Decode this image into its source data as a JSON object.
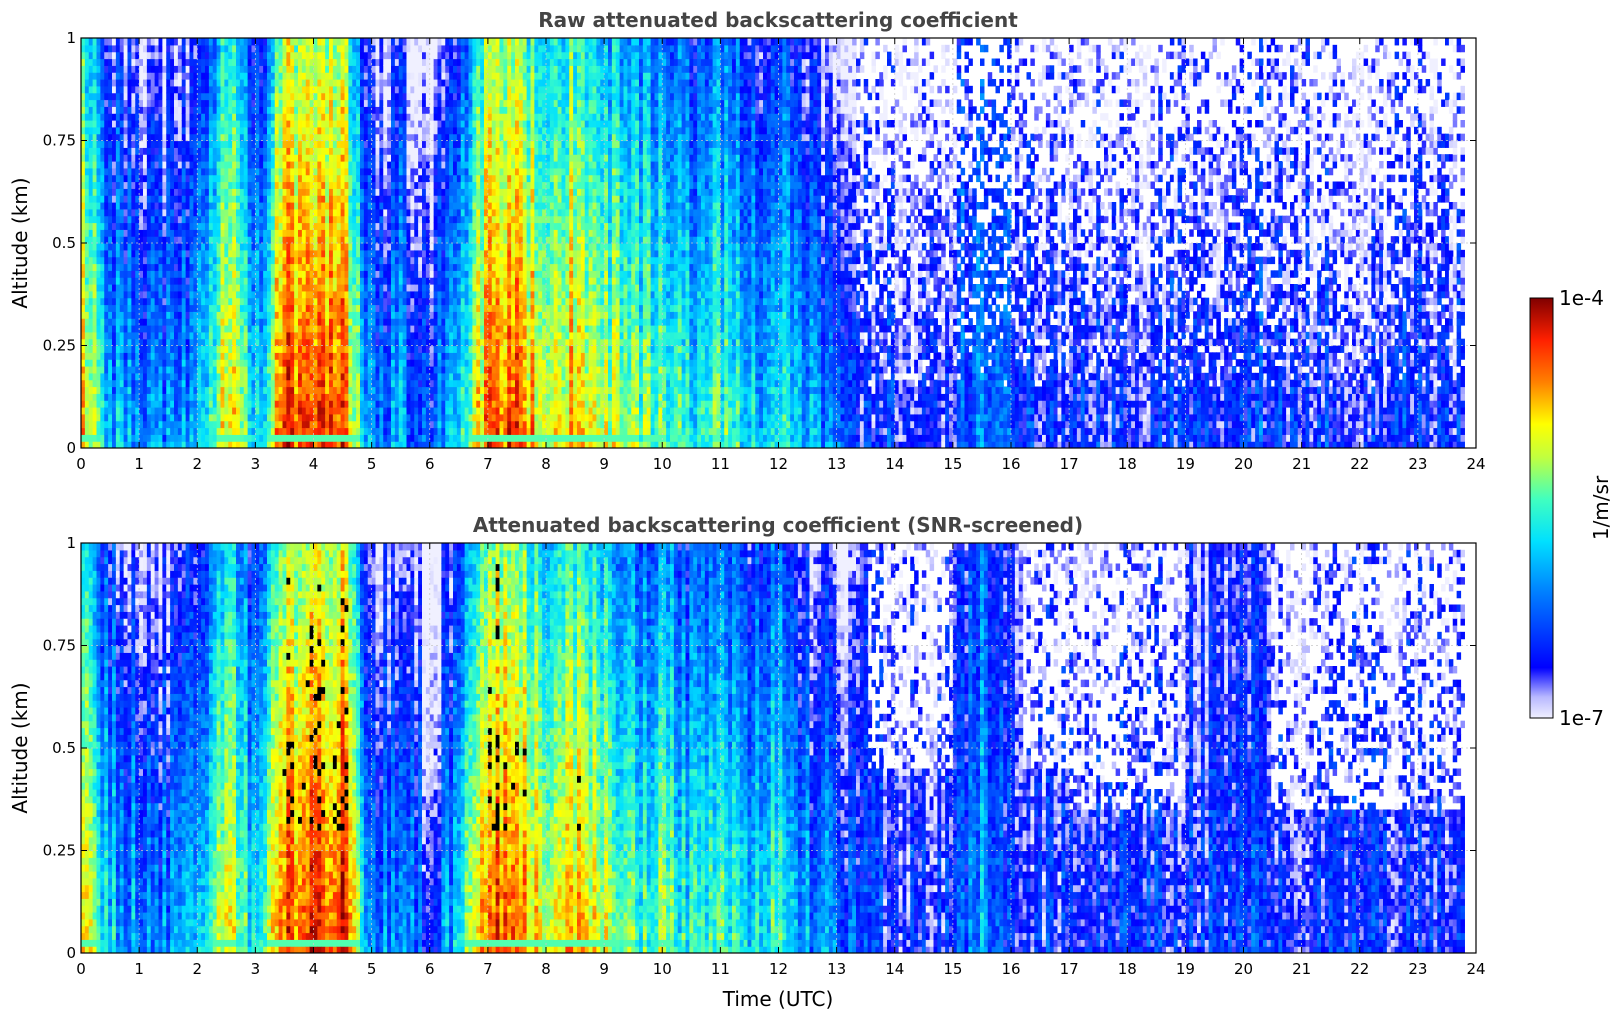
{
  "chart_data": [
    {
      "type": "heatmap",
      "title": "Raw attenuated backscattering coefficient",
      "ylabel": "Altitude (km)",
      "xlabel": "",
      "xlim": [
        0,
        24
      ],
      "ylim": [
        0,
        1
      ],
      "x_ticks": [
        "0",
        "1",
        "2",
        "3",
        "4",
        "5",
        "6",
        "7",
        "8",
        "9",
        "10",
        "11",
        "12",
        "13",
        "14",
        "15",
        "16",
        "17",
        "18",
        "19",
        "20",
        "21",
        "22",
        "23",
        "24"
      ],
      "y_ticks": [
        "0",
        "0.25",
        "0.5",
        "0.75",
        "1"
      ],
      "grid": true,
      "screened": false
    },
    {
      "type": "heatmap",
      "title": "Attenuated backscattering coefficient (SNR-screened)",
      "ylabel": "Altitude (km)",
      "xlabel": "Time (UTC)",
      "xlim": [
        0,
        24
      ],
      "ylim": [
        0,
        1
      ],
      "x_ticks": [
        "0",
        "1",
        "2",
        "3",
        "4",
        "5",
        "6",
        "7",
        "8",
        "9",
        "10",
        "11",
        "12",
        "13",
        "14",
        "15",
        "16",
        "17",
        "18",
        "19",
        "20",
        "21",
        "22",
        "23",
        "24"
      ],
      "y_ticks": [
        "0",
        "0.25",
        "0.5",
        "0.75",
        "1"
      ],
      "grid": true,
      "screened": true
    }
  ],
  "colorbar": {
    "label": "1/m/sr",
    "max_label": "1e-4",
    "min_label": "1e-7",
    "scale": "log",
    "colormap": "jet"
  },
  "time_profile": {
    "hours": [
      0,
      0.5,
      1,
      1.5,
      2,
      2.5,
      3,
      3.5,
      4,
      4.5,
      5,
      5.5,
      6,
      6.5,
      7,
      7.5,
      8,
      8.5,
      9,
      9.5,
      10,
      10.5,
      11,
      11.5,
      12,
      12.5,
      13,
      13.5,
      14,
      14.5,
      15,
      15.5,
      16,
      16.5,
      17,
      17.5,
      18,
      18.5,
      19,
      19.5,
      20,
      20.5,
      21,
      21.5,
      22,
      22.5,
      23,
      23.5,
      23.8
    ],
    "log10_beta_near_surface": [
      -4.6,
      -5.8,
      -6.0,
      -6.1,
      -5.9,
      -4.7,
      -5.9,
      -4.3,
      -4.4,
      -4.2,
      -6.2,
      -5.9,
      -6.4,
      -5.7,
      -4.5,
      -4.4,
      -5.0,
      -4.7,
      -5.0,
      -5.3,
      -5.3,
      -5.6,
      -5.3,
      -5.8,
      -5.5,
      -6.0,
      -6.0,
      -6.5,
      -6.5,
      -6.5,
      -6.5,
      -5.9,
      -6.4,
      -6.5,
      -6.5,
      -6.5,
      -6.5,
      -6.5,
      -6.5,
      -6.5,
      -6.3,
      -6.5,
      -6.5,
      -6.5,
      -6.5,
      -6.5,
      -6.5,
      -6.5,
      -6.5
    ]
  }
}
